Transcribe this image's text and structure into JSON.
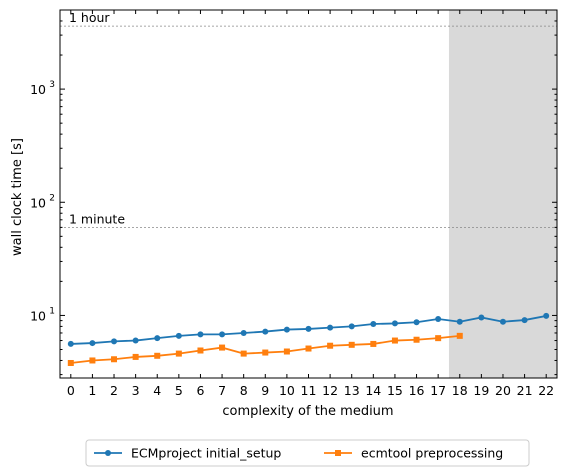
{
  "chart_data": {
    "type": "line",
    "xlabel": "complexity of the medium",
    "ylabel": "wall clock time [s]",
    "yscale": "log",
    "xlim": [
      -0.5,
      22.5
    ],
    "ylim": [
      2.8,
      5000
    ],
    "grid": false,
    "legend_position": "bottom-center, below axes",
    "x_ticks": [
      "0",
      "1",
      "2",
      "3",
      "4",
      "5",
      "6",
      "7",
      "8",
      "9",
      "10",
      "11",
      "12",
      "13",
      "14",
      "15",
      "16",
      "17",
      "18",
      "19",
      "20",
      "21",
      "22"
    ],
    "y_ticks": [
      {
        "value": 10,
        "base": "10",
        "exp": "1"
      },
      {
        "value": 100,
        "base": "10",
        "exp": "2"
      },
      {
        "value": 1000,
        "base": "10",
        "exp": "3"
      }
    ],
    "reference_lines": [
      {
        "value": 3600,
        "label": "1 hour"
      },
      {
        "value": 60,
        "label": "1 minute"
      }
    ],
    "shaded_region": {
      "x_start": 17.5,
      "x_end": 22.5,
      "color": "#d9d9d9"
    },
    "series": [
      {
        "name": "ECMproject initial_setup",
        "color": "#1f77b4",
        "marker": "circle",
        "x": [
          0,
          1,
          2,
          3,
          4,
          5,
          6,
          7,
          8,
          9,
          10,
          11,
          12,
          13,
          14,
          15,
          16,
          17,
          18,
          19,
          20,
          21,
          22
        ],
        "values": [
          5.6,
          5.7,
          5.9,
          6.0,
          6.3,
          6.6,
          6.8,
          6.8,
          7.0,
          7.2,
          7.5,
          7.6,
          7.8,
          8.0,
          8.4,
          8.5,
          8.7,
          9.3,
          8.8,
          9.6,
          8.8,
          9.1,
          9.9
        ]
      },
      {
        "name": "ecmtool preprocessing",
        "color": "#ff7f0e",
        "marker": "square",
        "x": [
          0,
          1,
          2,
          3,
          4,
          5,
          6,
          7,
          8,
          9,
          10,
          11,
          12,
          13,
          14,
          15,
          16,
          17,
          18
        ],
        "values": [
          3.8,
          4.0,
          4.1,
          4.3,
          4.4,
          4.6,
          4.9,
          5.2,
          4.6,
          4.7,
          4.8,
          5.1,
          5.4,
          5.5,
          5.6,
          6.0,
          6.1,
          6.3,
          6.6
        ]
      }
    ]
  }
}
